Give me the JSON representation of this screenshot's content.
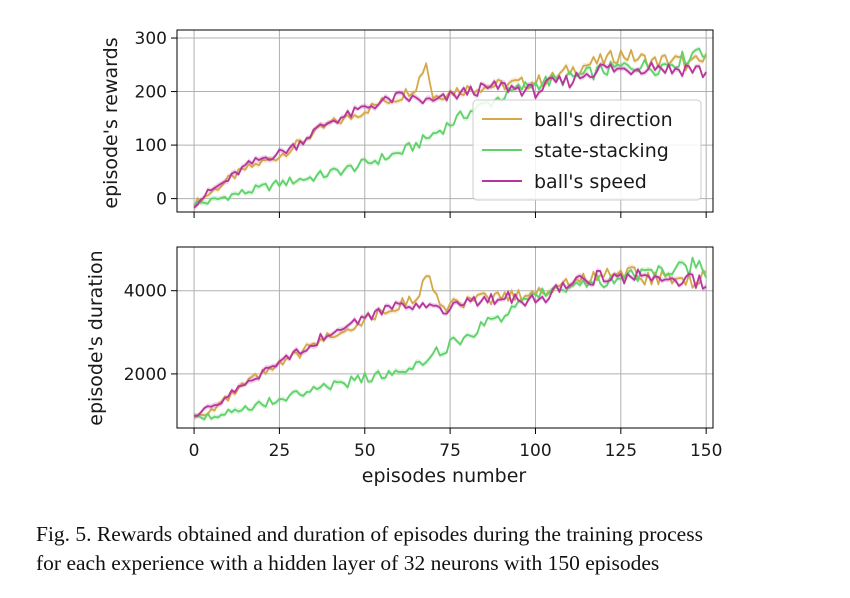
{
  "caption": {
    "line1": "Fig. 5.  Rewards obtained and duration of episodes during the training process",
    "line2": "for each experience with a hidden layer of 32 neurons with 150 episodes"
  },
  "colors": {
    "balls_direction": "#d4a94a",
    "state_stacking": "#5fd36a",
    "balls_speed": "#b8359c",
    "grid": "#b0b0b0",
    "axis": "#000000"
  },
  "chart_data": [
    {
      "type": "line",
      "title": "",
      "xlabel": "",
      "ylabel": "episode's rewards",
      "xlim": [
        -5,
        152
      ],
      "ylim": [
        -25,
        315
      ],
      "xticks": [
        0,
        25,
        50,
        75,
        100,
        125,
        150
      ],
      "yticks": [
        0,
        100,
        200,
        300
      ],
      "ytick_labels": [
        "0",
        "100",
        "200",
        "300"
      ],
      "grid": true,
      "legend_position": "right",
      "series": [
        {
          "name": "ball's direction",
          "x": [
            0,
            5,
            10,
            15,
            20,
            25,
            30,
            35,
            40,
            45,
            50,
            55,
            60,
            65,
            68,
            70,
            75,
            80,
            85,
            90,
            95,
            100,
            105,
            110,
            115,
            120,
            125,
            130,
            135,
            140,
            145,
            150
          ],
          "y": [
            -10,
            12,
            35,
            55,
            68,
            80,
            100,
            122,
            140,
            150,
            165,
            180,
            190,
            210,
            255,
            190,
            200,
            205,
            210,
            212,
            215,
            218,
            225,
            240,
            250,
            258,
            270,
            262,
            255,
            260,
            250,
            258
          ]
        },
        {
          "name": "state-stacking",
          "x": [
            0,
            5,
            10,
            15,
            20,
            25,
            30,
            35,
            40,
            45,
            50,
            55,
            60,
            65,
            70,
            75,
            80,
            85,
            90,
            95,
            100,
            105,
            110,
            115,
            120,
            125,
            130,
            135,
            140,
            145,
            148,
            150
          ],
          "y": [
            -10,
            -5,
            5,
            12,
            20,
            28,
            35,
            40,
            48,
            55,
            65,
            75,
            85,
            100,
            120,
            140,
            160,
            175,
            190,
            205,
            215,
            220,
            225,
            232,
            240,
            245,
            250,
            245,
            255,
            265,
            285,
            270
          ]
        },
        {
          "name": "ball's speed",
          "x": [
            0,
            5,
            10,
            15,
            20,
            25,
            30,
            35,
            40,
            45,
            50,
            55,
            60,
            65,
            70,
            75,
            80,
            85,
            90,
            95,
            100,
            105,
            110,
            115,
            120,
            125,
            130,
            135,
            140,
            145,
            150
          ],
          "y": [
            -10,
            15,
            35,
            60,
            75,
            85,
            100,
            125,
            145,
            155,
            170,
            180,
            190,
            185,
            180,
            190,
            200,
            205,
            210,
            205,
            200,
            215,
            220,
            235,
            245,
            240,
            245,
            250,
            240,
            245,
            235
          ]
        }
      ]
    },
    {
      "type": "line",
      "title": "",
      "xlabel": "episodes number",
      "ylabel": "episode's duration",
      "xlim": [
        -5,
        152
      ],
      "ylim": [
        700,
        5050
      ],
      "xticks": [
        0,
        25,
        50,
        75,
        100,
        125,
        150
      ],
      "xtick_labels": [
        "0",
        "25",
        "50",
        "75",
        "100",
        "125",
        "150"
      ],
      "yticks": [
        2000,
        4000
      ],
      "ytick_labels": [
        "2000",
        "4000"
      ],
      "grid": true,
      "series": [
        {
          "name": "ball's direction",
          "x": [
            0,
            5,
            10,
            15,
            20,
            25,
            30,
            35,
            40,
            45,
            50,
            55,
            60,
            65,
            69,
            72,
            75,
            80,
            85,
            90,
            95,
            100,
            105,
            110,
            115,
            120,
            125,
            130,
            135,
            140,
            145,
            150
          ],
          "y": [
            950,
            1150,
            1400,
            1750,
            2000,
            2200,
            2450,
            2700,
            2950,
            3100,
            3300,
            3500,
            3650,
            3850,
            4400,
            3600,
            3650,
            3700,
            3800,
            3850,
            3900,
            3950,
            4050,
            4200,
            4300,
            4400,
            4500,
            4350,
            4300,
            4350,
            4250,
            4300
          ]
        },
        {
          "name": "state-stacking",
          "x": [
            0,
            5,
            10,
            15,
            20,
            25,
            30,
            35,
            40,
            45,
            50,
            55,
            60,
            65,
            70,
            75,
            80,
            85,
            90,
            95,
            100,
            105,
            110,
            115,
            120,
            125,
            130,
            135,
            140,
            145,
            148,
            150
          ],
          "y": [
            950,
            1000,
            1100,
            1200,
            1300,
            1400,
            1500,
            1600,
            1700,
            1800,
            1900,
            2000,
            2100,
            2250,
            2450,
            2700,
            2900,
            3150,
            3400,
            3650,
            3850,
            4000,
            4100,
            4200,
            4250,
            4300,
            4350,
            4400,
            4450,
            4550,
            4700,
            4450
          ]
        },
        {
          "name": "ball's speed",
          "x": [
            0,
            5,
            10,
            15,
            20,
            25,
            30,
            35,
            40,
            45,
            50,
            55,
            60,
            65,
            70,
            75,
            80,
            85,
            90,
            95,
            100,
            105,
            110,
            115,
            120,
            125,
            130,
            135,
            140,
            145,
            150
          ],
          "y": [
            950,
            1200,
            1450,
            1800,
            2050,
            2250,
            2500,
            2750,
            3000,
            3150,
            3350,
            3550,
            3700,
            3650,
            3550,
            3600,
            3700,
            3800,
            3850,
            3800,
            3750,
            3950,
            4100,
            4250,
            4350,
            4300,
            4350,
            4400,
            4250,
            4300,
            4200
          ]
        }
      ]
    }
  ]
}
